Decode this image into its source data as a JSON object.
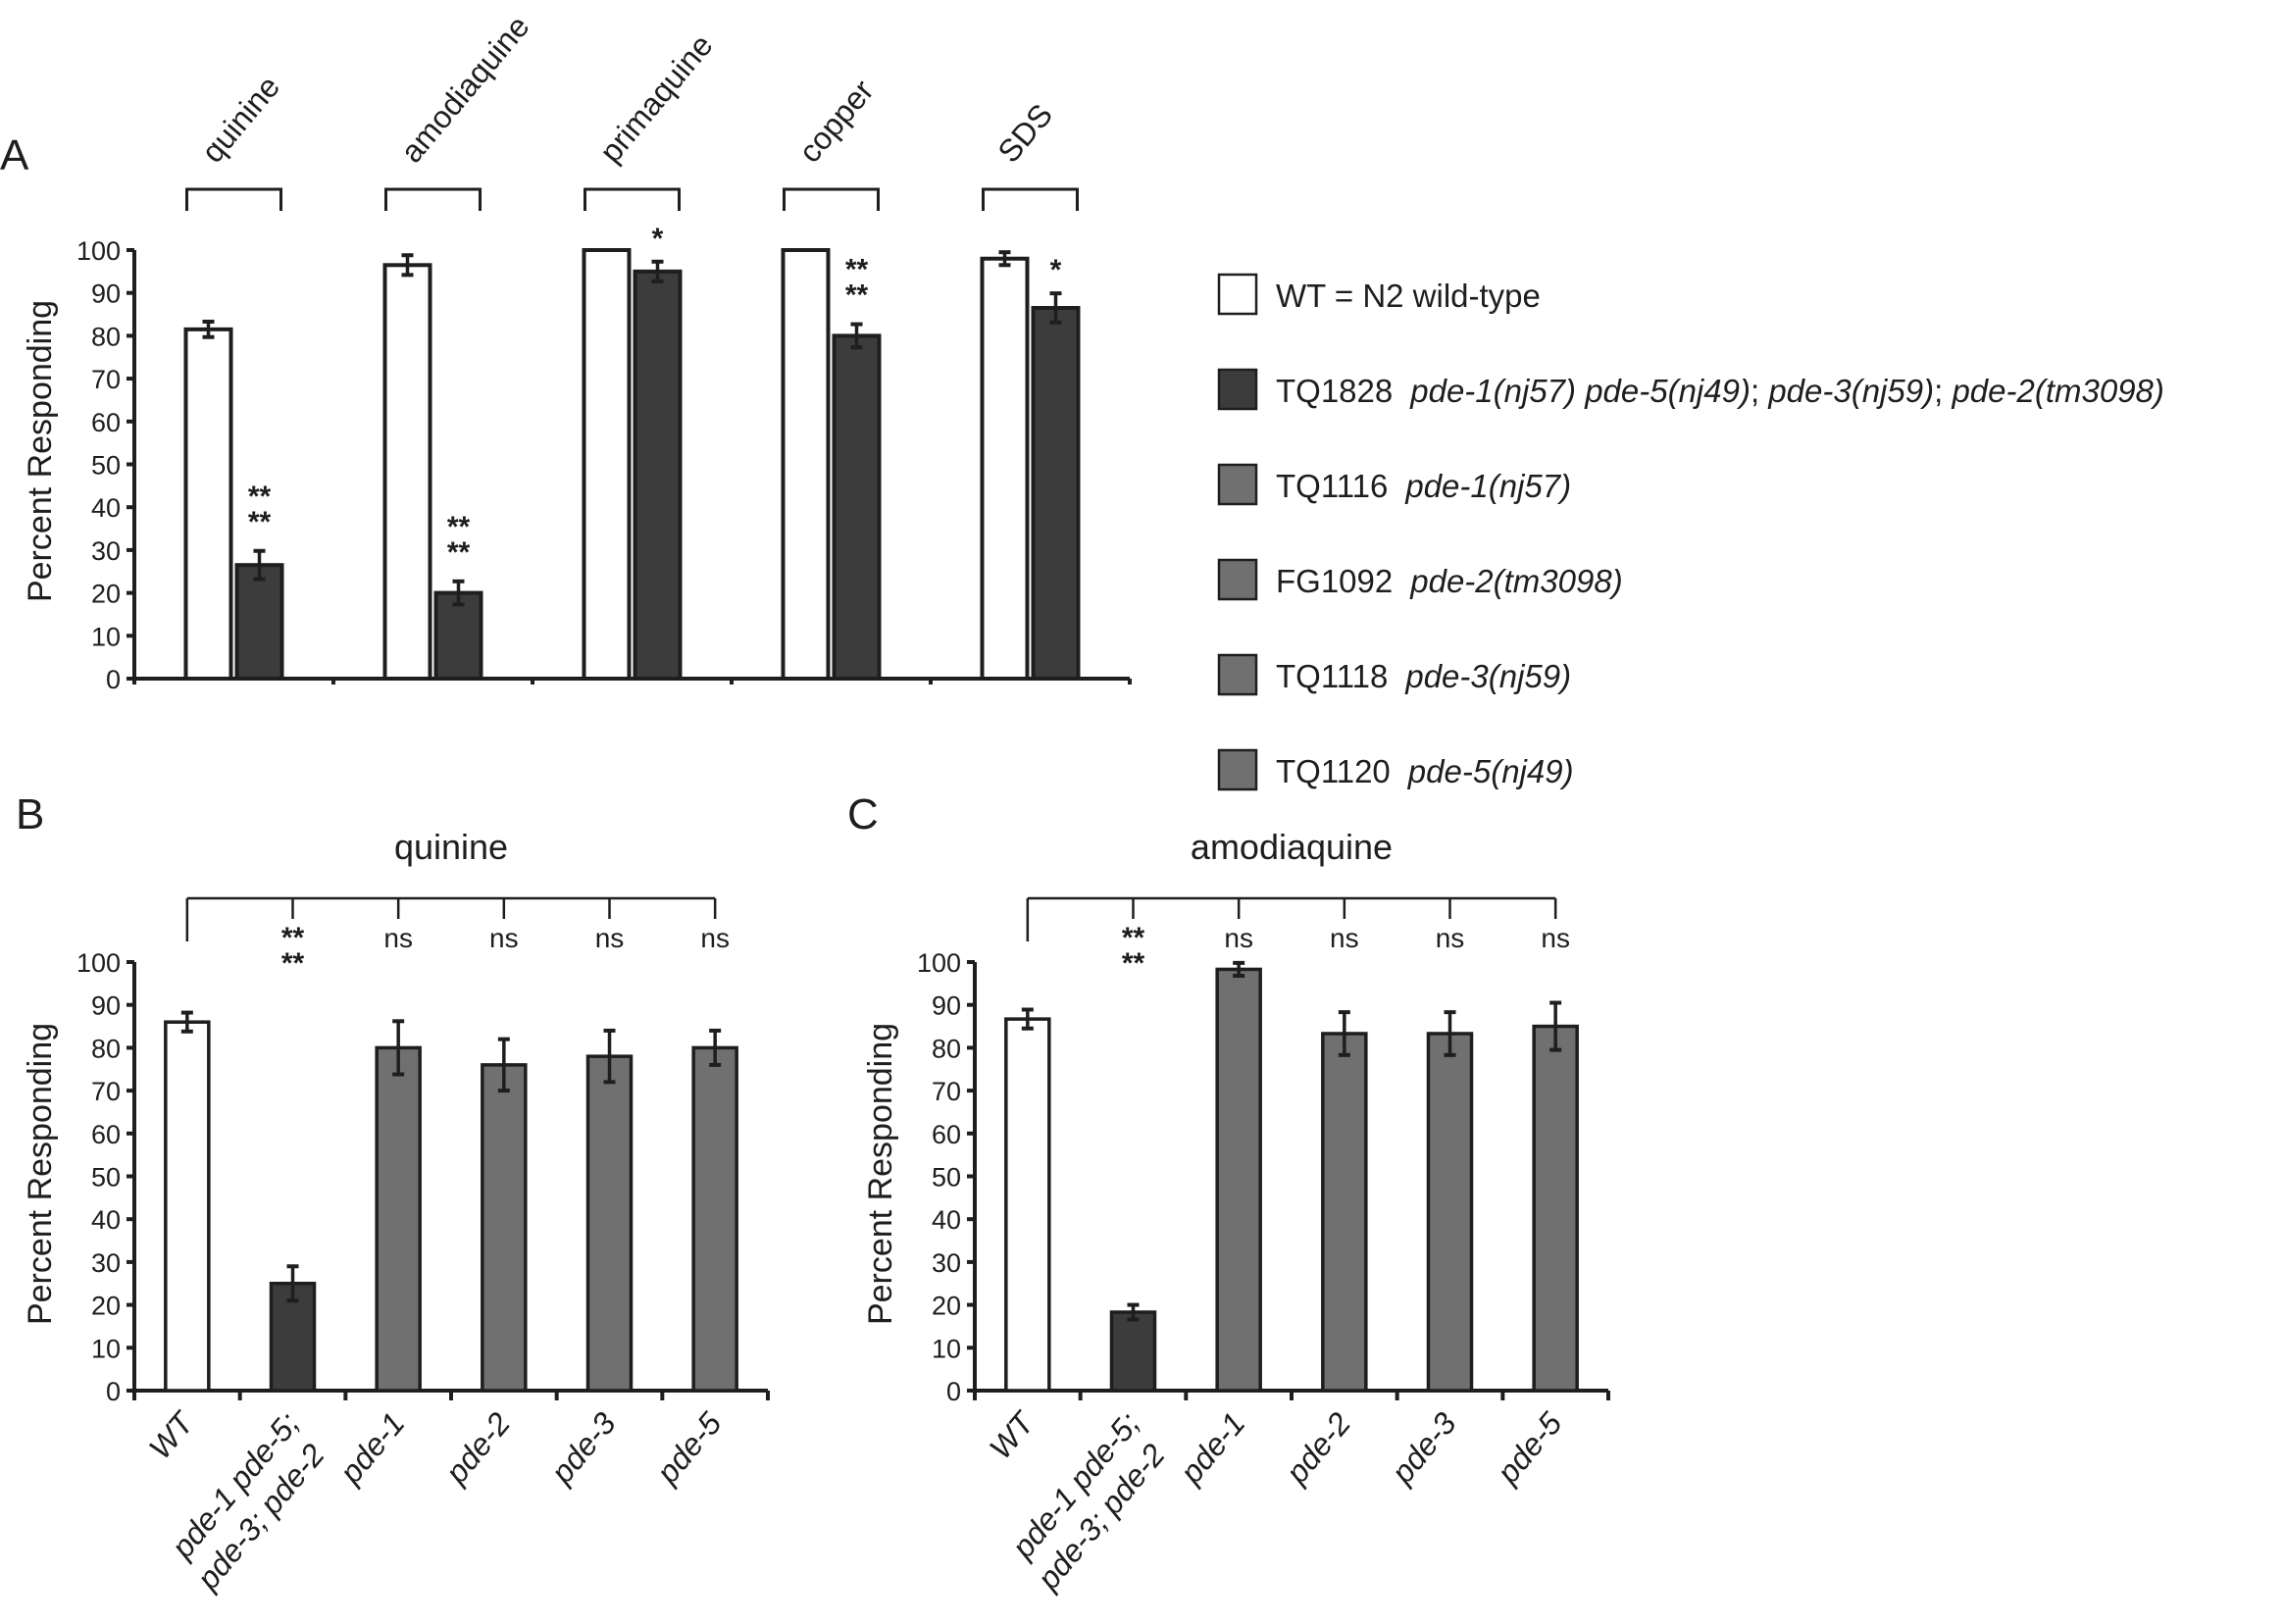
{
  "colors": {
    "wt": "#ffffff",
    "tq1828": "#3c3c3c",
    "single": "#707070",
    "stroke": "#1e1e1e"
  },
  "legend": [
    {
      "strain": "WT = N2 wild-type",
      "genotype": "",
      "series": "wt"
    },
    {
      "strain": "TQ1828",
      "genotype": "pde-1(nj57) pde-5(nj49)",
      "sep1": "; ",
      "genotype2": "pde-3(nj59)",
      "sep2": "; ",
      "genotype3": "pde-2(tm3098)",
      "series": "tq1828"
    },
    {
      "strain": "TQ1116",
      "genotype": "pde-1(nj57)",
      "series": "single"
    },
    {
      "strain": "FG1092",
      "genotype": "pde-2(tm3098)",
      "series": "single"
    },
    {
      "strain": "TQ1118",
      "genotype": "pde-3(nj59)",
      "series": "single"
    },
    {
      "strain": "TQ1120",
      "genotype": "pde-5(nj49)",
      "series": "single"
    }
  ],
  "chart_data": [
    {
      "panel": "A",
      "type": "bar",
      "title": "",
      "ylabel": "Percent Responding",
      "ylim": [
        0,
        100
      ],
      "yticks": [
        "0",
        "10",
        "20",
        "30",
        "40",
        "50",
        "60",
        "70",
        "80",
        "90",
        "100"
      ],
      "categories": [
        "quinine",
        "amodiaquine",
        "primaquine",
        "copper",
        "SDS"
      ],
      "series": [
        {
          "name": "WT = N2 wild-type",
          "key": "wt",
          "values": [
            81.5,
            96.5,
            100,
            100,
            98
          ],
          "errors": [
            1.8,
            2.3,
            0,
            0,
            1.5
          ]
        },
        {
          "name": "TQ1828",
          "key": "tq1828",
          "values": [
            26.5,
            20,
            95,
            80,
            86.5
          ],
          "errors": [
            3.3,
            2.7,
            2.3,
            2.7,
            3.4
          ]
        }
      ],
      "significance": [
        "****",
        "****",
        "*",
        "****",
        "*"
      ]
    },
    {
      "panel": "B",
      "type": "bar",
      "title": "quinine",
      "ylabel": "Percent Responding",
      "ylim": [
        0,
        100
      ],
      "yticks": [
        "0",
        "10",
        "20",
        "30",
        "40",
        "50",
        "60",
        "70",
        "80",
        "90",
        "100"
      ],
      "categories": [
        "WT",
        "pde-1 pde-5; pde-3; pde-2",
        "pde-1",
        "pde-2",
        "pde-3",
        "pde-5"
      ],
      "category_lines": [
        [
          "WT"
        ],
        [
          "pde-1 pde-5;",
          "pde-3; pde-2"
        ],
        [
          "pde-1"
        ],
        [
          "pde-2"
        ],
        [
          "pde-3"
        ],
        [
          "pde-5"
        ]
      ],
      "series_keys": [
        "wt",
        "tq1828",
        "single",
        "single",
        "single",
        "single"
      ],
      "values": [
        86,
        25,
        80,
        76,
        78,
        80
      ],
      "errors": [
        2.2,
        4,
        6.2,
        6,
        6,
        4
      ],
      "significance": [
        "",
        "****",
        "ns",
        "ns",
        "ns",
        "ns"
      ]
    },
    {
      "panel": "C",
      "type": "bar",
      "title": "amodiaquine",
      "ylabel": "Percent Responding",
      "ylim": [
        0,
        100
      ],
      "yticks": [
        "0",
        "10",
        "20",
        "30",
        "40",
        "50",
        "60",
        "70",
        "80",
        "90",
        "100"
      ],
      "categories": [
        "WT",
        "pde-1 pde-5; pde-3; pde-2",
        "pde-1",
        "pde-2",
        "pde-3",
        "pde-5"
      ],
      "category_lines": [
        [
          "WT"
        ],
        [
          "pde-1 pde-5;",
          "pde-3; pde-2"
        ],
        [
          "pde-1"
        ],
        [
          "pde-2"
        ],
        [
          "pde-3"
        ],
        [
          "pde-5"
        ]
      ],
      "series_keys": [
        "wt",
        "tq1828",
        "single",
        "single",
        "single",
        "single"
      ],
      "values": [
        86.7,
        18.3,
        98.3,
        83.3,
        83.3,
        85
      ],
      "errors": [
        2.2,
        1.7,
        1.5,
        5,
        5,
        5.5
      ],
      "significance": [
        "",
        "****",
        "ns",
        "ns",
        "ns",
        "ns"
      ]
    }
  ]
}
